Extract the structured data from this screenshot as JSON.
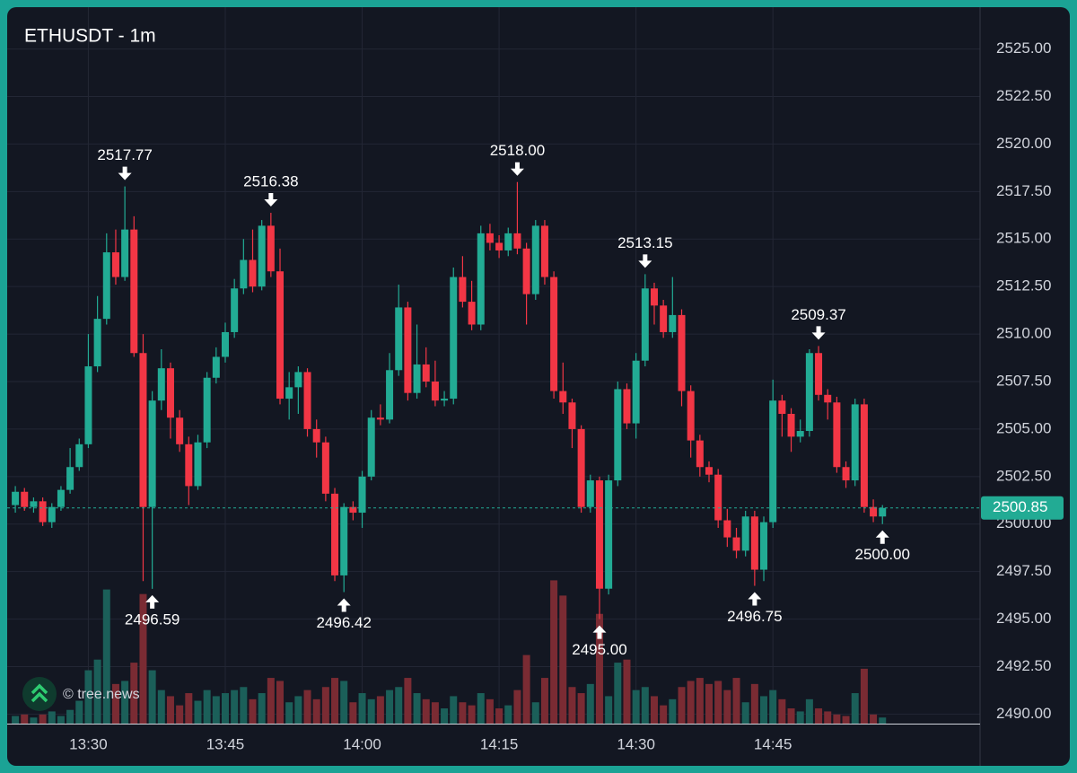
{
  "chart_data": {
    "type": "candlestick",
    "title": "ETHUSDT - 1m",
    "watermark": "© tree.news",
    "categories": [
      null,
      null,
      null,
      null,
      null,
      null,
      null,
      null,
      "13:30",
      null,
      null,
      null,
      null,
      null,
      null,
      null,
      null,
      null,
      null,
      null,
      null,
      null,
      null,
      "13:45",
      null,
      null,
      null,
      null,
      null,
      null,
      null,
      null,
      null,
      null,
      null,
      null,
      null,
      null,
      "14:00",
      null,
      null,
      null,
      null,
      null,
      null,
      null,
      null,
      null,
      null,
      null,
      null,
      null,
      null,
      "14:15",
      null,
      null,
      null,
      null,
      null,
      null,
      null,
      null,
      null,
      null,
      null,
      null,
      null,
      null,
      "14:30",
      null,
      null,
      null,
      null,
      null,
      null,
      null,
      null,
      null,
      null,
      null,
      null,
      null,
      null,
      "14:45",
      null,
      null,
      null,
      null,
      null,
      null,
      null,
      null,
      null,
      null,
      null,
      null
    ],
    "open": [
      2501.0,
      2501.7,
      2500.9,
      2501.2,
      2500.1,
      2500.9,
      2501.8,
      2503.0,
      2504.2,
      2508.3,
      2510.8,
      2514.3,
      2513.0,
      2515.5,
      2509.0,
      2500.9,
      2506.5,
      2508.2,
      2505.6,
      2504.2,
      2502.0,
      2504.3,
      2507.7,
      2508.8,
      2510.1,
      2512.4,
      2513.9,
      2512.5,
      2515.7,
      2513.3,
      2506.6,
      2507.2,
      2508.0,
      2505.0,
      2504.3,
      2501.6,
      2497.3,
      2500.9,
      2500.6,
      2502.5,
      2505.6,
      2505.5,
      2508.1,
      2511.4,
      2506.9,
      2508.4,
      2507.5,
      2506.5,
      2506.6,
      2513.0,
      2511.7,
      2510.5,
      2515.3,
      2514.8,
      2514.4,
      2515.3,
      2514.5,
      2512.1,
      2515.7,
      2513.0,
      2507.0,
      2506.4,
      2505.0,
      2500.9,
      2502.3,
      2496.6,
      2502.3,
      2507.1,
      2505.3,
      2508.6,
      2512.4,
      2511.5,
      2510.1,
      2511.0,
      2507.0,
      2504.4,
      2503.0,
      2502.6,
      2500.2,
      2499.3,
      2498.6,
      2500.4,
      2497.6,
      2500.1,
      2506.5,
      2505.8,
      2504.6,
      2504.9,
      2509.0,
      2506.8,
      2506.4,
      2503.0,
      2502.3,
      2506.3,
      2500.9,
      2500.4
    ],
    "high": [
      2502.0,
      2501.9,
      2501.4,
      2501.4,
      2501.1,
      2502.0,
      2504.0,
      2504.5,
      2510.0,
      2512.0,
      2515.3,
      2515.5,
      2517.77,
      2516.2,
      2510.0,
      2507.0,
      2509.2,
      2508.5,
      2506.0,
      2504.6,
      2504.7,
      2508.0,
      2509.3,
      2510.6,
      2512.9,
      2515.0,
      2515.5,
      2516.0,
      2516.38,
      2514.5,
      2508.0,
      2508.3,
      2508.2,
      2505.5,
      2504.6,
      2501.9,
      2501.1,
      2501.2,
      2502.8,
      2506.0,
      2506.3,
      2509.0,
      2512.6,
      2511.7,
      2510.5,
      2509.3,
      2508.6,
      2507.0,
      2513.5,
      2514.1,
      2512.8,
      2515.7,
      2515.8,
      2515.2,
      2515.6,
      2518.0,
      2514.8,
      2516.0,
      2516.0,
      2513.3,
      2508.5,
      2506.6,
      2505.2,
      2502.6,
      2502.5,
      2502.6,
      2507.5,
      2507.4,
      2509.0,
      2513.15,
      2512.7,
      2511.8,
      2513.0,
      2511.3,
      2507.3,
      2504.7,
      2503.3,
      2502.9,
      2500.8,
      2499.8,
      2500.7,
      2500.7,
      2500.4,
      2507.6,
      2506.8,
      2506.1,
      2505.5,
      2509.2,
      2509.37,
      2507.1,
      2506.7,
      2503.3,
      2506.6,
      2506.6,
      2501.3,
      2501.0
    ],
    "low": [
      2500.6,
      2500.7,
      2500.6,
      2499.9,
      2499.8,
      2500.7,
      2501.6,
      2502.8,
      2504.0,
      2508.0,
      2510.5,
      2512.6,
      2512.8,
      2508.8,
      2497.0,
      2496.59,
      2506.0,
      2504.5,
      2503.8,
      2501.0,
      2501.8,
      2504.0,
      2507.4,
      2508.5,
      2509.8,
      2512.1,
      2512.2,
      2512.3,
      2513.0,
      2506.3,
      2505.5,
      2505.8,
      2504.6,
      2503.5,
      2501.2,
      2497.0,
      2496.42,
      2500.2,
      2499.8,
      2502.3,
      2505.2,
      2505.3,
      2507.8,
      2506.5,
      2506.6,
      2507.2,
      2506.2,
      2506.2,
      2506.3,
      2511.4,
      2510.2,
      2510.2,
      2514.4,
      2514.0,
      2514.1,
      2514.2,
      2510.5,
      2511.8,
      2512.6,
      2506.6,
      2505.8,
      2504.0,
      2500.6,
      2500.6,
      2495.0,
      2496.3,
      2502.0,
      2505.0,
      2504.5,
      2508.3,
      2510.5,
      2509.8,
      2509.8,
      2506.2,
      2503.5,
      2502.5,
      2502.2,
      2499.8,
      2498.8,
      2498.2,
      2498.3,
      2496.75,
      2497.0,
      2499.8,
      2504.6,
      2503.8,
      2504.3,
      2504.6,
      2506.5,
      2505.5,
      2502.7,
      2501.9,
      2502.0,
      2500.6,
      2500.1,
      2500.0
    ],
    "close": [
      2501.7,
      2500.9,
      2501.2,
      2500.1,
      2500.9,
      2501.8,
      2503.0,
      2504.2,
      2508.3,
      2510.8,
      2514.3,
      2513.0,
      2515.5,
      2509.0,
      2500.9,
      2506.5,
      2508.2,
      2505.6,
      2504.2,
      2502.0,
      2504.3,
      2507.7,
      2508.8,
      2510.1,
      2512.4,
      2513.9,
      2512.5,
      2515.7,
      2513.3,
      2506.6,
      2507.2,
      2508.0,
      2505.0,
      2504.3,
      2501.6,
      2497.3,
      2500.9,
      2500.6,
      2502.5,
      2505.6,
      2505.5,
      2508.1,
      2511.4,
      2506.9,
      2508.4,
      2507.5,
      2506.5,
      2506.6,
      2513.0,
      2511.7,
      2510.5,
      2515.3,
      2514.8,
      2514.4,
      2515.3,
      2514.5,
      2512.1,
      2515.7,
      2513.0,
      2507.0,
      2506.4,
      2505.0,
      2500.9,
      2502.3,
      2496.6,
      2502.3,
      2507.1,
      2505.3,
      2508.6,
      2512.4,
      2511.5,
      2510.1,
      2511.0,
      2507.0,
      2504.4,
      2503.0,
      2502.6,
      2500.2,
      2499.3,
      2498.6,
      2500.4,
      2497.6,
      2500.1,
      2506.5,
      2505.8,
      2504.6,
      2504.9,
      2509.0,
      2506.8,
      2506.4,
      2503.0,
      2502.3,
      2506.3,
      2500.9,
      2500.4,
      2500.85
    ],
    "volume": [
      5,
      6,
      4,
      6,
      8,
      5,
      9,
      15,
      35,
      42,
      88,
      26,
      28,
      40,
      85,
      35,
      22,
      18,
      12,
      20,
      15,
      22,
      18,
      20,
      22,
      24,
      16,
      20,
      30,
      28,
      14,
      18,
      22,
      16,
      24,
      30,
      28,
      14,
      20,
      16,
      18,
      22,
      24,
      30,
      20,
      16,
      14,
      10,
      18,
      14,
      12,
      20,
      16,
      10,
      12,
      22,
      45,
      14,
      30,
      94,
      84,
      24,
      20,
      26,
      72,
      18,
      40,
      42,
      22,
      24,
      18,
      12,
      16,
      24,
      28,
      30,
      26,
      28,
      22,
      30,
      14,
      26,
      18,
      22,
      16,
      10,
      8,
      16,
      10,
      8,
      6,
      5,
      20,
      36,
      6,
      4
    ],
    "up_color": "#22ab94",
    "down_color": "#f23645",
    "volume_up_color": "#1b5f59",
    "volume_down_color": "#7a2b33",
    "ylim": [
      2489.5,
      2527.2
    ],
    "yticks": [
      {
        "value": 2490,
        "label": "2490.00"
      },
      {
        "value": 2492.5,
        "label": "2492.50"
      },
      {
        "value": 2495,
        "label": "2495.00"
      },
      {
        "value": 2497.5,
        "label": "2497.50"
      },
      {
        "value": 2500,
        "label": "2500.00"
      },
      {
        "value": 2502.5,
        "label": "2502.50"
      },
      {
        "value": 2505,
        "label": "2505.00"
      },
      {
        "value": 2507.5,
        "label": "2507.50"
      },
      {
        "value": 2510,
        "label": "2510.00"
      },
      {
        "value": 2512.5,
        "label": "2512.50"
      },
      {
        "value": 2515,
        "label": "2515.00"
      },
      {
        "value": 2517.5,
        "label": "2517.50"
      },
      {
        "value": 2520,
        "label": "2520.00"
      },
      {
        "value": 2522.5,
        "label": "2522.50"
      },
      {
        "value": 2525,
        "label": "2525.00"
      }
    ],
    "volume_ylim": [
      0,
      470
    ],
    "grid": true,
    "last_price": {
      "value": 2500.85,
      "label": "2500.85"
    },
    "annotations": [
      {
        "kind": "high",
        "value": 2517.77,
        "label": "2517.77"
      },
      {
        "kind": "low",
        "value": 2496.59,
        "label": "2496.59"
      },
      {
        "kind": "high",
        "value": 2516.38,
        "label": "2516.38"
      },
      {
        "kind": "low",
        "value": 2496.42,
        "label": "2496.42"
      },
      {
        "kind": "high",
        "value": 2518.0,
        "label": "2518.00"
      },
      {
        "kind": "low",
        "value": 2495.0,
        "label": "2495.00"
      },
      {
        "kind": "high",
        "value": 2513.15,
        "label": "2513.15"
      },
      {
        "kind": "low",
        "value": 2496.75,
        "label": "2496.75"
      },
      {
        "kind": "high",
        "value": 2509.37,
        "label": "2509.37"
      },
      {
        "kind": "low",
        "value": 2500.0,
        "label": "2500.00"
      }
    ]
  }
}
